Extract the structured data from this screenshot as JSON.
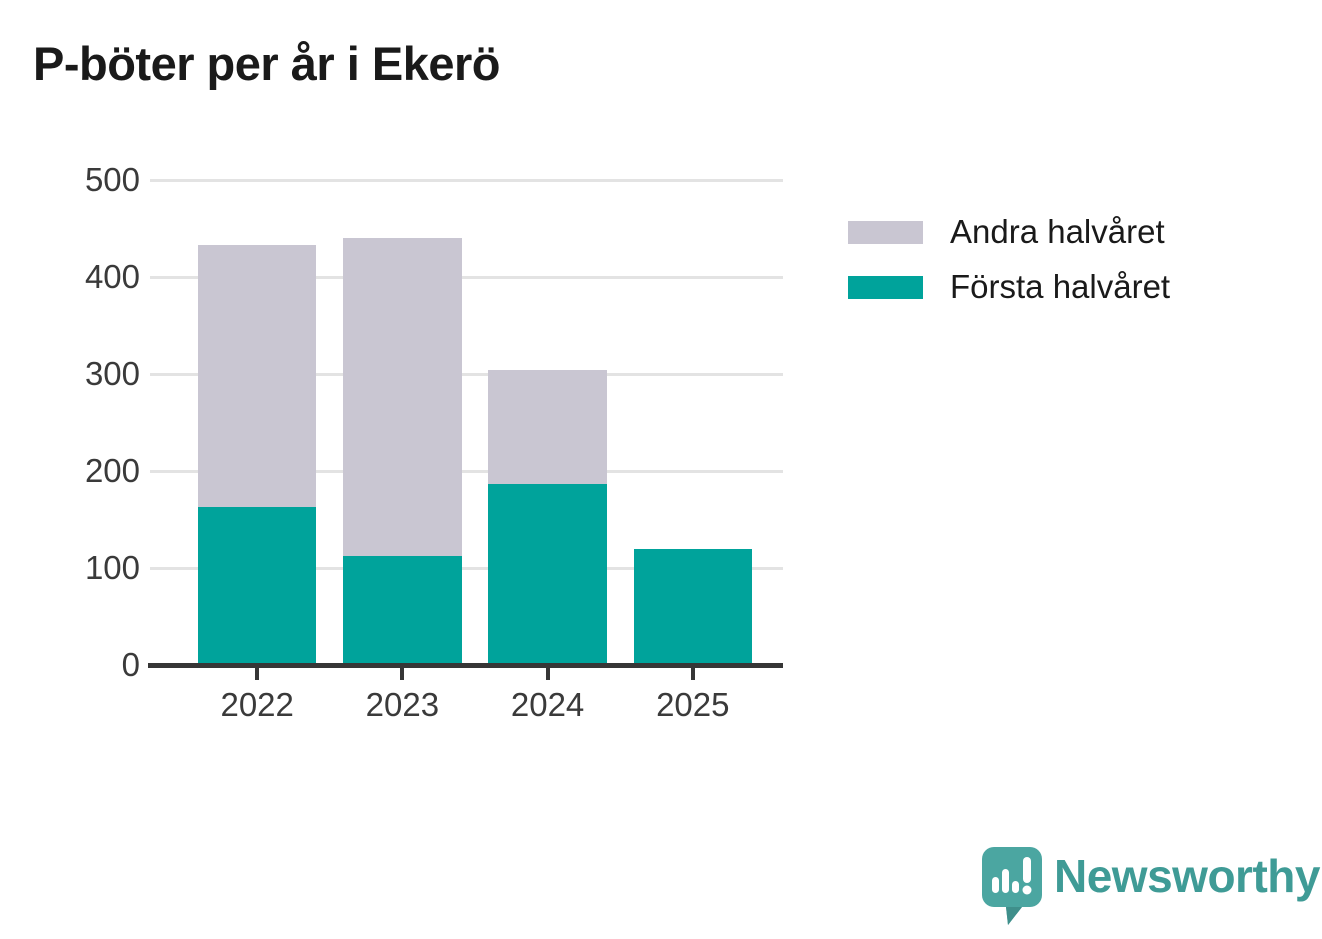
{
  "title": "P-böter per år i Ekerö",
  "chart_data": {
    "type": "bar",
    "stacked": true,
    "title": "P-böter per år i Ekerö",
    "categories": [
      "2022",
      "2023",
      "2024",
      "2025"
    ],
    "series": [
      {
        "name": "Första halvåret",
        "color": "#00a39b",
        "values": [
          163,
          112,
          187,
          120
        ]
      },
      {
        "name": "Andra halvåret",
        "color": "#c9c6d2",
        "values": [
          270,
          328,
          117,
          0
        ]
      }
    ],
    "totals": [
      433,
      440,
      304,
      120
    ],
    "xlabel": "",
    "ylabel": "",
    "ylim": [
      0,
      500
    ],
    "yticks": [
      0,
      100,
      200,
      300,
      400,
      500
    ],
    "grid": "horizontal",
    "legend_position": "right",
    "legend_order": [
      "Andra halvåret",
      "Första halvåret"
    ]
  },
  "legend": {
    "items": [
      {
        "label": "Andra halvåret",
        "color": "#c9c6d2"
      },
      {
        "label": "Första halvåret",
        "color": "#00a39b"
      }
    ]
  },
  "branding": {
    "logo_text": "Newsworthy",
    "logo_color": "#3f9b96",
    "icon": "newsworthy-bar-chart-speech-bubble-icon",
    "icon_color": "#4ba6a1"
  },
  "colors": {
    "background": "#ffffff",
    "gridline": "#e3e3e3",
    "axis": "#363636",
    "tick_labels": "#3a3a3a",
    "title_text": "#1a1a1a"
  }
}
